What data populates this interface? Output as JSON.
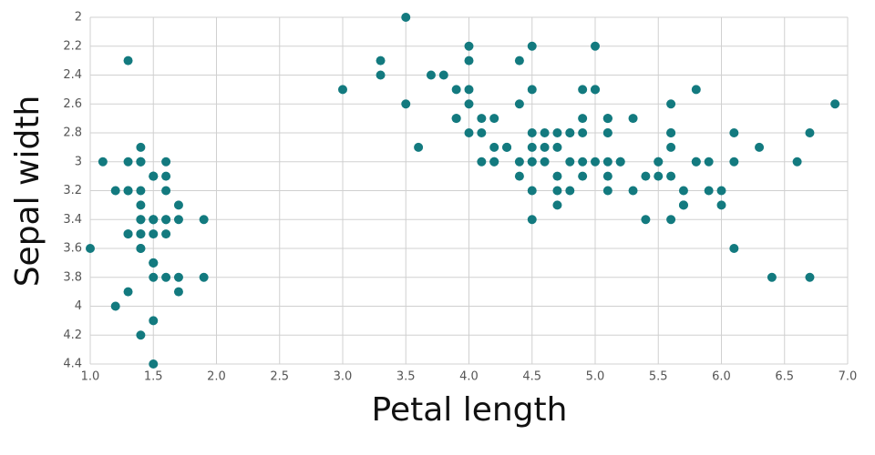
{
  "chart_data": {
    "type": "scatter",
    "x_label": "Petal length",
    "y_label": "Sepal width",
    "color": "#137a7f",
    "grid": true,
    "xlim": [
      1,
      7
    ],
    "ylim": [
      4.4,
      2
    ],
    "xticks": [
      {
        "value": 1,
        "label": "1.0"
      },
      1.5,
      {
        "value": 2,
        "label": "2.0"
      },
      2.5,
      {
        "value": 3,
        "label": "3.0"
      },
      3.5,
      {
        "value": 4,
        "label": "4.0"
      },
      4.5,
      {
        "value": 5,
        "label": "5.0"
      },
      5.5,
      {
        "value": 6,
        "label": "6.0"
      },
      6.5,
      {
        "value": 7,
        "label": "7.0"
      }
    ],
    "yticks": [
      2,
      2.2,
      2.4,
      2.6,
      2.8,
      3,
      3.2,
      3.4,
      3.6,
      3.8,
      4,
      4.2,
      4.4
    ],
    "x": [
      1.4,
      1.4,
      1.3,
      1.5,
      1.4,
      1.7,
      1.4,
      1.5,
      1.4,
      1.5,
      1.5,
      1.6,
      1.4,
      1.1,
      1.2,
      1.5,
      1.3,
      1.4,
      1.7,
      1.5,
      1.7,
      1.5,
      1.0,
      1.7,
      1.9,
      1.6,
      1.6,
      1.5,
      1.4,
      1.6,
      1.6,
      1.5,
      1.5,
      1.4,
      1.5,
      1.2,
      1.3,
      1.4,
      1.3,
      1.5,
      1.3,
      1.3,
      1.3,
      1.6,
      1.9,
      1.4,
      1.6,
      1.4,
      1.5,
      1.4,
      4.7,
      4.5,
      4.9,
      4.0,
      4.6,
      4.5,
      4.7,
      3.3,
      4.6,
      3.9,
      3.5,
      4.2,
      4.0,
      4.7,
      3.6,
      4.4,
      4.5,
      4.1,
      4.5,
      3.9,
      4.8,
      4.0,
      4.9,
      4.7,
      4.3,
      4.4,
      4.8,
      5.0,
      4.5,
      3.5,
      3.8,
      3.7,
      3.9,
      5.1,
      4.5,
      4.5,
      4.7,
      4.4,
      4.1,
      4.0,
      4.4,
      4.6,
      4.0,
      3.3,
      4.2,
      4.2,
      4.2,
      4.3,
      3.0,
      4.1,
      6.0,
      5.1,
      5.9,
      5.6,
      5.8,
      6.6,
      4.5,
      6.3,
      5.8,
      6.1,
      5.1,
      5.3,
      5.5,
      5.0,
      5.1,
      5.3,
      5.5,
      6.7,
      6.9,
      5.0,
      5.7,
      4.9,
      6.7,
      4.9,
      5.7,
      6.0,
      4.8,
      4.9,
      5.6,
      5.8,
      6.1,
      6.4,
      5.6,
      5.1,
      5.6,
      6.1,
      5.6,
      5.5,
      4.8,
      5.4,
      5.6,
      5.1,
      5.1,
      5.9,
      5.7,
      5.2,
      5.0,
      5.2,
      5.4,
      5.1
    ],
    "values": [
      3.5,
      3.0,
      3.2,
      3.1,
      3.6,
      3.9,
      3.4,
      3.4,
      2.9,
      3.1,
      3.7,
      3.4,
      3.0,
      3.0,
      4.0,
      4.4,
      3.9,
      3.5,
      3.8,
      3.8,
      3.4,
      3.7,
      3.6,
      3.3,
      3.4,
      3.0,
      3.4,
      3.5,
      3.4,
      3.2,
      3.1,
      3.4,
      4.1,
      4.2,
      3.1,
      3.2,
      3.5,
      3.6,
      3.0,
      3.4,
      3.5,
      2.3,
      3.2,
      3.5,
      3.8,
      3.0,
      3.8,
      3.2,
      3.7,
      3.3,
      3.2,
      3.2,
      3.1,
      2.3,
      2.8,
      2.8,
      3.3,
      2.4,
      2.9,
      2.7,
      2.0,
      3.0,
      2.2,
      2.9,
      2.9,
      3.1,
      3.0,
      2.7,
      2.2,
      2.5,
      3.2,
      2.8,
      2.5,
      2.8,
      2.9,
      3.0,
      2.8,
      3.0,
      2.9,
      2.6,
      2.4,
      2.4,
      2.7,
      2.7,
      3.0,
      3.4,
      3.1,
      2.3,
      3.0,
      2.5,
      2.6,
      3.0,
      2.6,
      2.3,
      2.7,
      3.0,
      2.9,
      2.9,
      2.5,
      2.8,
      3.3,
      2.7,
      3.0,
      2.9,
      3.0,
      3.0,
      2.5,
      2.9,
      2.5,
      3.6,
      3.2,
      2.7,
      3.0,
      2.5,
      2.8,
      3.2,
      3.0,
      3.8,
      2.6,
      2.2,
      3.2,
      2.8,
      2.8,
      2.7,
      3.3,
      3.2,
      2.8,
      3.0,
      2.8,
      3.0,
      2.8,
      3.8,
      2.8,
      2.8,
      2.6,
      3.0,
      3.4,
      3.1,
      3.0,
      3.1,
      3.1,
      3.1,
      2.7,
      3.2,
      3.3,
      3.0,
      2.5,
      3.0,
      3.4,
      3.0
    ]
  }
}
